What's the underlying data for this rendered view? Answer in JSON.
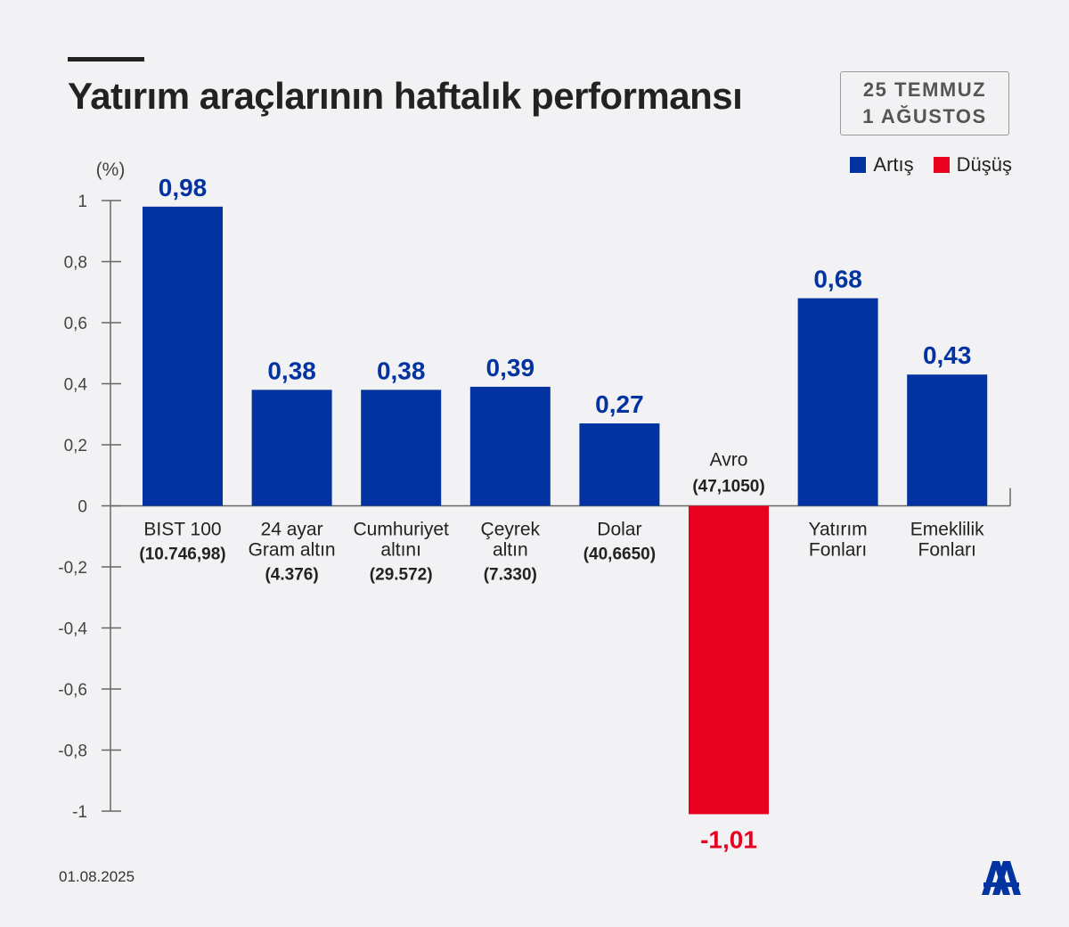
{
  "header": {
    "title": "Yatırım araçlarının haftalık performansı",
    "period_line1": "25 TEMMUZ",
    "period_line2": "1 AĞUSTOS"
  },
  "legend": {
    "increase_label": "Artış",
    "decrease_label": "Düşüş"
  },
  "footer": {
    "date": "01.08.2025",
    "logo_text": "AA"
  },
  "colors": {
    "increase": "#0233a0",
    "decrease": "#e8001f",
    "axis": "#666666",
    "tick_label": "#444444"
  },
  "chart_data": {
    "type": "bar",
    "ylabel": "(%)",
    "ylim": [
      -1,
      1
    ],
    "yticks": [
      "1",
      "0,8",
      "0,6",
      "0,4",
      "0,2",
      "0",
      "-0,2",
      "-0,4",
      "-0,6",
      "-0,8",
      "-1"
    ],
    "ytick_values": [
      1,
      0.8,
      0.6,
      0.4,
      0.2,
      0,
      -0.2,
      -0.4,
      -0.6,
      -0.8,
      -1
    ],
    "bars": [
      {
        "label": [
          "BIST 100"
        ],
        "sub": "(10.746,98)",
        "value": 0.98,
        "value_label": "0,98"
      },
      {
        "label": [
          "24 ayar",
          "Gram altın"
        ],
        "sub": "(4.376)",
        "value": 0.38,
        "value_label": "0,38"
      },
      {
        "label": [
          "Cumhuriyet",
          "altını"
        ],
        "sub": "(29.572)",
        "value": 0.38,
        "value_label": "0,38"
      },
      {
        "label": [
          "Çeyrek",
          "altın"
        ],
        "sub": "(7.330)",
        "value": 0.39,
        "value_label": "0,39"
      },
      {
        "label": [
          "Dolar"
        ],
        "sub": "(40,6650)",
        "value": 0.27,
        "value_label": "0,27"
      },
      {
        "label": [
          "Avro"
        ],
        "sub": "(47,1050)",
        "value": -1.01,
        "value_label": "-1,01"
      },
      {
        "label": [
          "Yatırım",
          "Fonları"
        ],
        "sub": "",
        "value": 0.68,
        "value_label": "0,68"
      },
      {
        "label": [
          "Emeklilik",
          "Fonları"
        ],
        "sub": "",
        "value": 0.43,
        "value_label": "0,43"
      }
    ]
  }
}
